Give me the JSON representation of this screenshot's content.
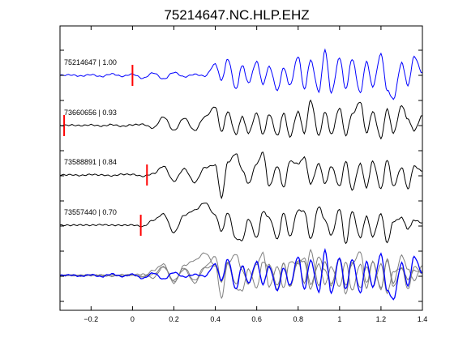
{
  "colors": {
    "template_trace": "#0000ff",
    "match_trace": "#000000",
    "stack_gray": "#808080",
    "pick_marker": "#ff0000",
    "axes": "#000000",
    "background": "#ffffff"
  },
  "chart_data": {
    "type": "line",
    "title": "75214647.NC.HLP.EHZ",
    "xlabel": "",
    "ylabel": "",
    "xlim": [
      -0.35,
      1.4
    ],
    "x_ticks": [
      -0.2,
      0,
      0.2,
      0.4,
      0.6,
      0.8,
      1,
      1.2,
      1.4
    ],
    "x_tick_labels": [
      "−0.2",
      "0",
      "0.2",
      "0.4",
      "0.6",
      "0.8",
      "1",
      "1.2",
      "1.4"
    ],
    "grid": false,
    "legend": "none",
    "series": [
      {
        "name": "75214647 | 1.00",
        "role": "template",
        "pick_time": 0.0,
        "x": [
          -0.35,
          -0.3,
          -0.25,
          -0.2,
          -0.15,
          -0.1,
          -0.05,
          0.0,
          0.05,
          0.1,
          0.15,
          0.2,
          0.25,
          0.3,
          0.35,
          0.4,
          0.43,
          0.46,
          0.5,
          0.53,
          0.56,
          0.6,
          0.63,
          0.66,
          0.7,
          0.73,
          0.76,
          0.8,
          0.83,
          0.86,
          0.9,
          0.93,
          0.96,
          1.0,
          1.03,
          1.06,
          1.1,
          1.13,
          1.16,
          1.2,
          1.23,
          1.26,
          1.3,
          1.33,
          1.36,
          1.4
        ],
        "y": [
          0.0,
          0.02,
          -0.03,
          0.03,
          -0.05,
          0.06,
          -0.04,
          0.05,
          -0.12,
          0.1,
          -0.15,
          0.12,
          -0.06,
          0.04,
          -0.03,
          0.45,
          -0.2,
          0.65,
          -0.55,
          0.4,
          -0.3,
          0.55,
          -0.35,
          0.35,
          -0.6,
          0.3,
          -0.4,
          0.75,
          -0.55,
          0.6,
          -0.65,
          1.0,
          -0.7,
          0.7,
          -0.55,
          0.65,
          -0.7,
          0.55,
          -0.45,
          0.85,
          -0.6,
          -0.95,
          0.5,
          -0.4,
          0.75,
          0.1
        ]
      },
      {
        "name": "73660656 | 0.93",
        "role": "match",
        "pick_time": -0.33,
        "x": [
          -0.35,
          -0.3,
          -0.25,
          -0.2,
          -0.15,
          -0.1,
          -0.05,
          0.0,
          0.05,
          0.1,
          0.15,
          0.2,
          0.25,
          0.3,
          0.35,
          0.4,
          0.43,
          0.46,
          0.5,
          0.53,
          0.56,
          0.6,
          0.63,
          0.66,
          0.7,
          0.73,
          0.76,
          0.8,
          0.83,
          0.86,
          0.9,
          0.93,
          0.96,
          1.0,
          1.03,
          1.06,
          1.1,
          1.13,
          1.16,
          1.2,
          1.23,
          1.26,
          1.3,
          1.33,
          1.36,
          1.4
        ],
        "y": [
          0.0,
          0.02,
          0.0,
          0.03,
          -0.02,
          0.04,
          -0.03,
          0.03,
          0.05,
          -0.1,
          0.35,
          -0.2,
          0.3,
          -0.2,
          0.35,
          0.75,
          -0.25,
          0.55,
          -0.35,
          0.35,
          -0.3,
          0.5,
          -0.35,
          0.45,
          -0.4,
          0.5,
          -0.45,
          0.55,
          -0.3,
          1.0,
          -0.4,
          0.55,
          -0.35,
          0.7,
          -0.4,
          0.45,
          0.95,
          -0.3,
          0.55,
          -0.5,
          0.65,
          -0.3,
          0.8,
          0.25,
          -0.2,
          0.4
        ]
      },
      {
        "name": "73588891 | 0.84",
        "role": "match",
        "pick_time": 0.07,
        "x": [
          -0.35,
          -0.3,
          -0.25,
          -0.2,
          -0.15,
          -0.1,
          -0.05,
          0.0,
          0.05,
          0.1,
          0.15,
          0.2,
          0.25,
          0.3,
          0.35,
          0.4,
          0.43,
          0.46,
          0.5,
          0.53,
          0.56,
          0.6,
          0.63,
          0.66,
          0.7,
          0.73,
          0.76,
          0.8,
          0.83,
          0.86,
          0.9,
          0.93,
          0.96,
          1.0,
          1.03,
          1.06,
          1.1,
          1.13,
          1.16,
          1.2,
          1.23,
          1.26,
          1.3,
          1.33,
          1.36,
          1.4
        ],
        "y": [
          0.0,
          0.01,
          -0.02,
          0.02,
          0.0,
          -0.03,
          0.03,
          0.02,
          -0.05,
          0.05,
          0.35,
          -0.25,
          0.25,
          -0.3,
          0.3,
          0.4,
          -0.9,
          0.5,
          0.85,
          0.2,
          -0.35,
          0.45,
          0.9,
          -0.45,
          0.35,
          -0.5,
          0.55,
          0.45,
          0.7,
          -0.35,
          0.45,
          -0.35,
          0.35,
          -0.45,
          0.55,
          -0.6,
          0.45,
          -0.5,
          0.55,
          -0.55,
          0.6,
          -0.45,
          0.3,
          -0.55,
          0.35,
          0.15
        ]
      },
      {
        "name": "73557440 | 0.70",
        "role": "match",
        "pick_time": 0.04,
        "x": [
          -0.35,
          -0.3,
          -0.25,
          -0.2,
          -0.15,
          -0.1,
          -0.05,
          0.0,
          0.05,
          0.1,
          0.15,
          0.2,
          0.25,
          0.3,
          0.35,
          0.4,
          0.43,
          0.46,
          0.5,
          0.53,
          0.56,
          0.6,
          0.63,
          0.66,
          0.7,
          0.73,
          0.76,
          0.8,
          0.83,
          0.86,
          0.9,
          0.93,
          0.96,
          1.0,
          1.03,
          1.06,
          1.1,
          1.13,
          1.16,
          1.2,
          1.23,
          1.26,
          1.3,
          1.33,
          1.36,
          1.4
        ],
        "y": [
          0.0,
          0.0,
          0.01,
          0.0,
          0.02,
          0.0,
          0.0,
          0.01,
          -0.05,
          0.2,
          0.45,
          -0.3,
          0.4,
          0.6,
          0.9,
          0.4,
          -0.25,
          0.5,
          -0.55,
          -0.6,
          0.25,
          -0.5,
          0.55,
          0.3,
          -0.55,
          0.5,
          -0.45,
          0.6,
          0.55,
          -0.55,
          0.75,
          0.2,
          -0.4,
          0.65,
          -0.75,
          0.55,
          -0.5,
          0.35,
          -0.45,
          0.45,
          -0.7,
          0.15,
          0.3,
          -0.15,
          0.2,
          0.1
        ]
      }
    ],
    "stack": {
      "label": "",
      "description_series_roles": "overlay of all traces; template in blue, matches in gray"
    }
  }
}
